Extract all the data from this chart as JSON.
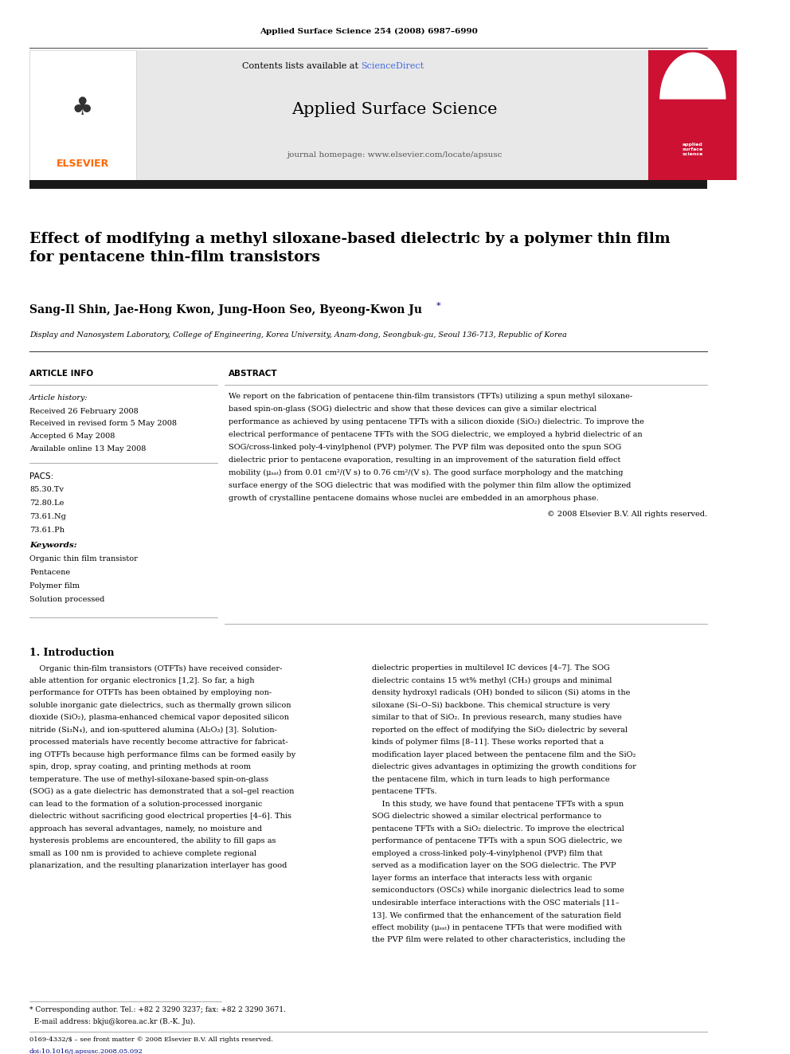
{
  "page_width": 9.92,
  "page_height": 13.23,
  "bg_color": "#ffffff",
  "header_journal_ref": "Applied Surface Science 254 (2008) 6987–6990",
  "contents_line": "Contents lists available at ",
  "sciencedirect_text": "ScienceDirect",
  "sciencedirect_color": "#4169E1",
  "journal_name": "Applied Surface Science",
  "journal_homepage": "journal homepage: www.elsevier.com/locate/apsusc",
  "elsevier_color": "#FF6600",
  "header_bar_color": "#1a1a1a",
  "title": "Effect of modifying a methyl siloxane-based dielectric by a polymer thin film\nfor pentacene thin-film transistors",
  "authors": "Sang-Il Shin, Jae-Hong Kwon, Jung-Hoon Seo, Byeong-Kwon Ju",
  "authors_star": "*",
  "affiliation": "Display and Nanosystem Laboratory, College of Engineering, Korea University, Anam-dong, Seongbuk-gu, Seoul 136-713, Republic of Korea",
  "article_info_header": "ARTICLE INFO",
  "abstract_header": "ABSTRACT",
  "article_history_label": "Article history:",
  "received": "Received 26 February 2008",
  "received_revised": "Received in revised form 5 May 2008",
  "accepted": "Accepted 6 May 2008",
  "available": "Available online 13 May 2008",
  "pacs_label": "PACS:",
  "pacs_codes": [
    "85.30.Tv",
    "72.80.Le",
    "73.61.Ng",
    "73.61.Ph"
  ],
  "keywords_label": "Keywords:",
  "keywords": [
    "Organic thin film transistor",
    "Pentacene",
    "Polymer film",
    "Solution processed"
  ],
  "copyright": "© 2008 Elsevier B.V. All rights reserved.",
  "intro_header": "1. Introduction",
  "footer_left": "0169-4332/$ – see front matter © 2008 Elsevier B.V. All rights reserved.",
  "footer_doi": "doi:10.1016/j.apsusc.2008.05.092",
  "gray_header_bg": "#e8e8e8",
  "abstract_lines": [
    "We report on the fabrication of pentacene thin-film transistors (TFTs) utilizing a spun methyl siloxane-",
    "based spin-on-glass (SOG) dielectric and show that these devices can give a similar electrical",
    "performance as achieved by using pentacene TFTs with a silicon dioxide (SiO₂) dielectric. To improve the",
    "electrical performance of pentacene TFTs with the SOG dielectric, we employed a hybrid dielectric of an",
    "SOG/cross-linked poly-4-vinylphenol (PVP) polymer. The PVP film was deposited onto the spun SOG",
    "dielectric prior to pentacene evaporation, resulting in an improvement of the saturation field effect",
    "mobility (μₛₐₜ) from 0.01 cm²/(V s) to 0.76 cm²/(V s). The good surface morphology and the matching",
    "surface energy of the SOG dielectric that was modified with the polymer thin film allow the optimized",
    "growth of crystalline pentacene domains whose nuclei are embedded in an amorphous phase."
  ],
  "intro1_lines": [
    "    Organic thin-film transistors (OTFTs) have received consider-",
    "able attention for organic electronics [1,2]. So far, a high",
    "performance for OTFTs has been obtained by employing non-",
    "soluble inorganic gate dielectrics, such as thermally grown silicon",
    "dioxide (SiO₂), plasma-enhanced chemical vapor deposited silicon",
    "nitride (Si₃N₄), and ion-sputtered alumina (Al₂O₃) [3]. Solution-",
    "processed materials have recently become attractive for fabricat-",
    "ing OTFTs because high performance films can be formed easily by",
    "spin, drop, spray coating, and printing methods at room",
    "temperature. The use of methyl-siloxane-based spin-on-glass",
    "(SOG) as a gate dielectric has demonstrated that a sol–gel reaction",
    "can lead to the formation of a solution-processed inorganic",
    "dielectric without sacrificing good electrical properties [4–6]. This",
    "approach has several advantages, namely, no moisture and",
    "hysteresis problems are encountered, the ability to fill gaps as",
    "small as 100 nm is provided to achieve complete regional",
    "planarization, and the resulting planarization interlayer has good"
  ],
  "intro2_lines": [
    "dielectric properties in multilevel IC devices [4–7]. The SOG",
    "dielectric contains 15 wt% methyl (CH₃) groups and minimal",
    "density hydroxyl radicals (OH) bonded to silicon (Si) atoms in the",
    "siloxane (Si–O–Si) backbone. This chemical structure is very",
    "similar to that of SiO₂. In previous research, many studies have",
    "reported on the effect of modifying the SiO₂ dielectric by several",
    "kinds of polymer films [8–11]. These works reported that a",
    "modification layer placed between the pentacene film and the SiO₂",
    "dielectric gives advantages in optimizing the growth conditions for",
    "the pentacene film, which in turn leads to high performance",
    "pentacene TFTs.",
    "    In this study, we have found that pentacene TFTs with a spun",
    "SOG dielectric showed a similar electrical performance to",
    "pentacene TFTs with a SiO₂ dielectric. To improve the electrical",
    "performance of pentacene TFTs with a spun SOG dielectric, we",
    "employed a cross-linked poly-4-vinylphenol (PVP) film that",
    "served as a modification layer on the SOG dielectric. The PVP",
    "layer forms an interface that interacts less with organic",
    "semiconductors (OSCs) while inorganic dielectrics lead to some",
    "undesirable interface interactions with the OSC materials [11–",
    "13]. We confirmed that the enhancement of the saturation field",
    "effect mobility (μₛₐₜ) in pentacene TFTs that were modified with",
    "the PVP film were related to other characteristics, including the"
  ]
}
